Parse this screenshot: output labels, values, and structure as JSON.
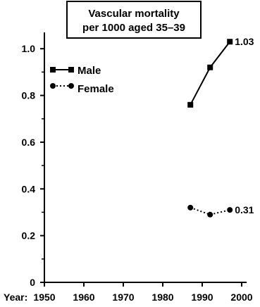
{
  "chart_data": {
    "type": "line",
    "title_lines": [
      "Vascular mortality",
      "per 1000 aged 35–39"
    ],
    "x_prefix": "Year:",
    "xlim": [
      1950,
      2000
    ],
    "ylim": [
      0,
      1.1
    ],
    "x_ticks": [
      1950,
      1960,
      1970,
      1980,
      1990,
      2000
    ],
    "y_ticks": [
      0,
      0.2,
      0.4,
      0.6,
      0.8,
      1.0
    ],
    "y_tick_labels": [
      "0",
      "0.2",
      "0.4",
      "0.6",
      "0.8",
      "1.0"
    ],
    "legend_placement": "top-left",
    "grid": false,
    "series": [
      {
        "name": "Male",
        "marker": "square",
        "line_style": "solid",
        "color": "#000000",
        "x": [
          1987,
          1992,
          1997
        ],
        "y": [
          0.76,
          0.92,
          1.03
        ],
        "end_label": "1.03"
      },
      {
        "name": "Female",
        "marker": "circle",
        "line_style": "dotted",
        "color": "#000000",
        "x": [
          1987,
          1992,
          1997
        ],
        "y": [
          0.32,
          0.29,
          0.31
        ],
        "end_label": "0.31"
      }
    ]
  }
}
